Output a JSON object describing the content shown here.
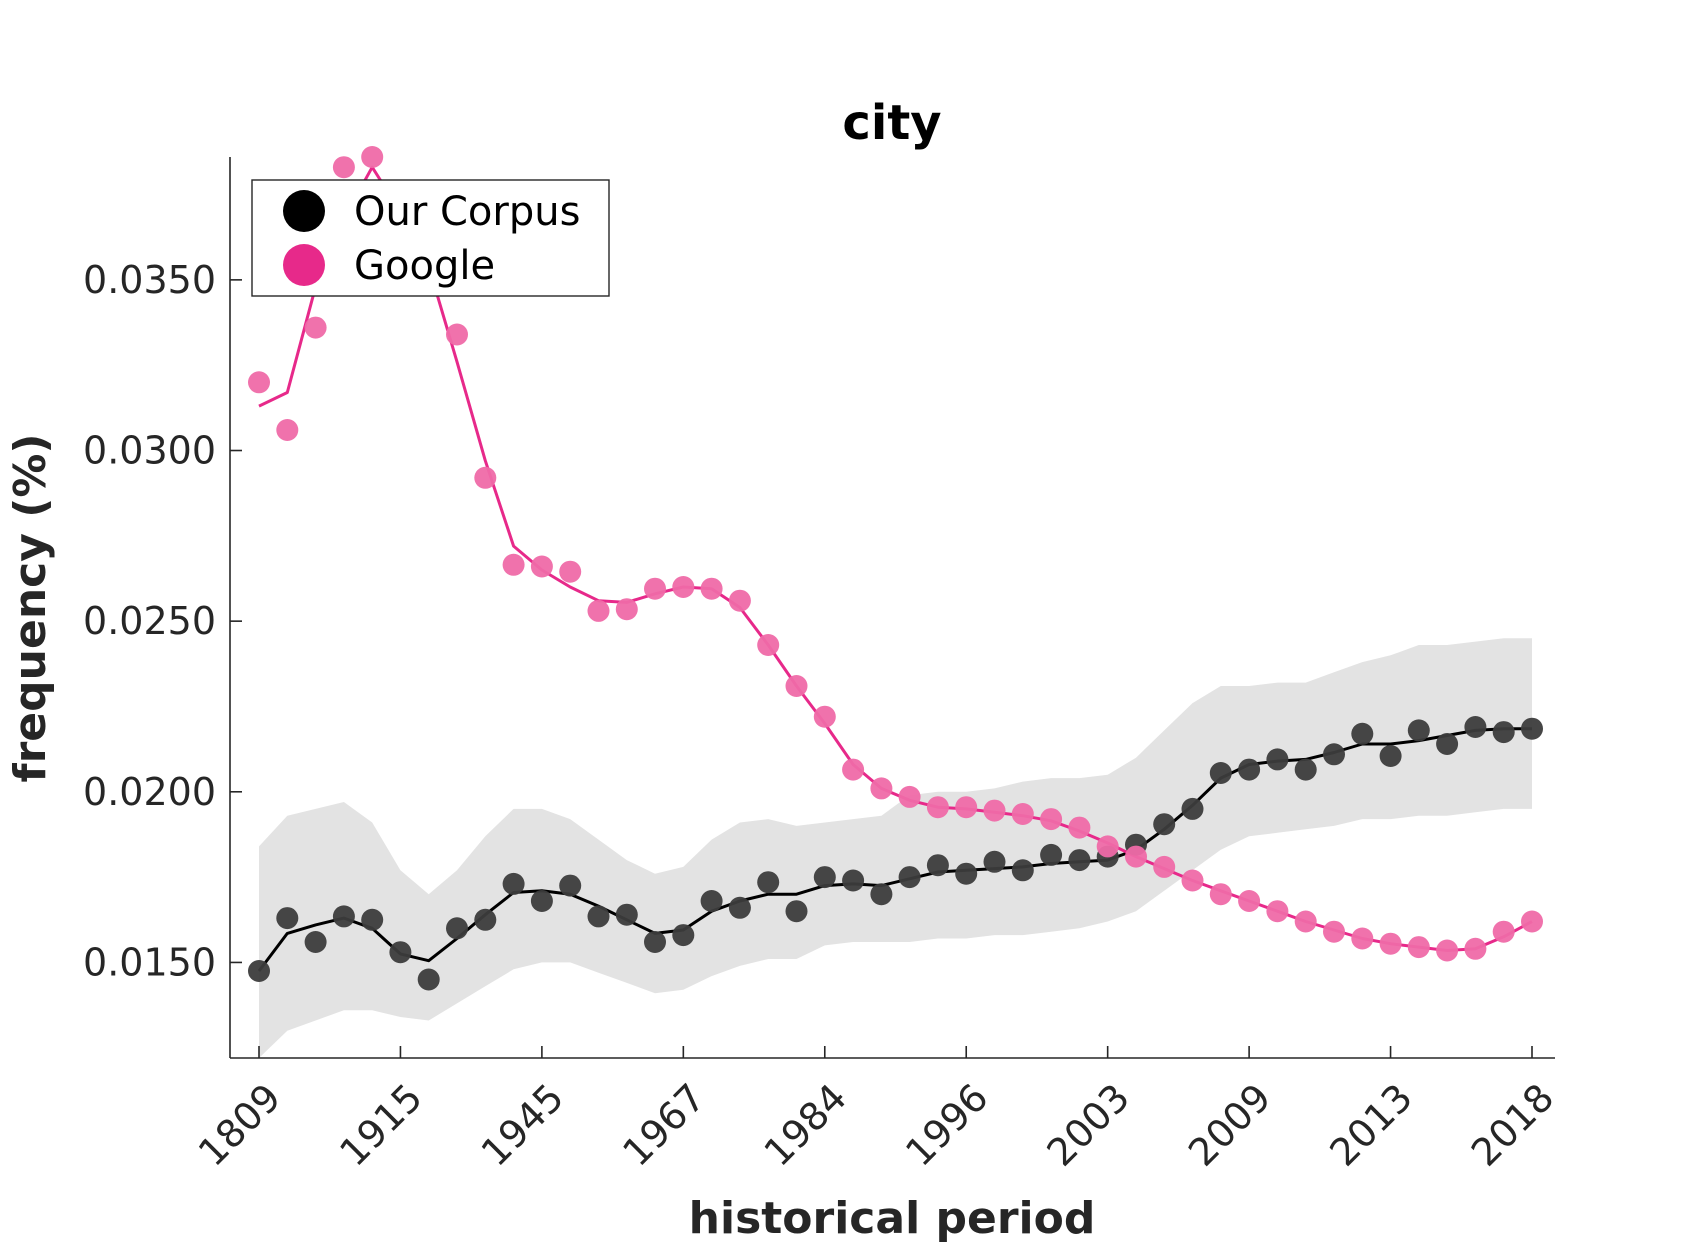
{
  "chart_data": {
    "type": "scatter",
    "title": "city",
    "xlabel": "historical period",
    "ylabel": "frequency (%)",
    "ylim": [
      0.0122,
      0.0386
    ],
    "yticks": [
      "0.0150",
      "0.0200",
      "0.0250",
      "0.0300",
      "0.0350"
    ],
    "xtick_labels": [
      "1809",
      "1915",
      "1945",
      "1967",
      "1984",
      "1996",
      "2003",
      "2009",
      "2013",
      "2018"
    ],
    "legend_position": "top-left",
    "grid": false,
    "series": [
      {
        "name": "Our Corpus",
        "color": "#000000",
        "points": [
          0.01475,
          0.0163,
          0.0156,
          0.01635,
          0.01625,
          0.0153,
          0.0145,
          0.016,
          0.01625,
          0.0173,
          0.0168,
          0.01725,
          0.01635,
          0.0164,
          0.0156,
          0.0158,
          0.0168,
          0.0166,
          0.01735,
          0.0165,
          0.0175,
          0.0174,
          0.017,
          0.0175,
          0.01785,
          0.0176,
          0.01795,
          0.0177,
          0.01815,
          0.018,
          0.0181,
          0.01845,
          0.01905,
          0.0195,
          0.02055,
          0.02065,
          0.02095,
          0.02065,
          0.0211,
          0.0217,
          0.02105,
          0.0218,
          0.0214,
          0.0219,
          0.02175,
          0.02185
        ],
        "smooth": [
          0.01475,
          0.01585,
          0.0161,
          0.0163,
          0.016,
          0.01525,
          0.01505,
          0.0157,
          0.0164,
          0.01705,
          0.0171,
          0.017,
          0.01665,
          0.01625,
          0.01585,
          0.01595,
          0.0165,
          0.0168,
          0.017,
          0.017,
          0.01725,
          0.0173,
          0.01725,
          0.01745,
          0.01765,
          0.0177,
          0.01775,
          0.0178,
          0.0179,
          0.01795,
          0.018,
          0.0183,
          0.0189,
          0.0196,
          0.0204,
          0.0208,
          0.0209,
          0.02095,
          0.02115,
          0.0214,
          0.0214,
          0.0215,
          0.02165,
          0.0218,
          0.02185,
          0.02185
        ],
        "band_lower": [
          0.0122,
          0.013,
          0.0133,
          0.0136,
          0.0136,
          0.0134,
          0.0133,
          0.0138,
          0.0143,
          0.0148,
          0.015,
          0.015,
          0.0147,
          0.0144,
          0.0141,
          0.0142,
          0.0146,
          0.0149,
          0.0151,
          0.0151,
          0.0155,
          0.0156,
          0.0156,
          0.0156,
          0.0157,
          0.0157,
          0.0158,
          0.0158,
          0.0159,
          0.016,
          0.0162,
          0.0165,
          0.0171,
          0.0177,
          0.0183,
          0.0187,
          0.0188,
          0.0189,
          0.019,
          0.0192,
          0.0192,
          0.0193,
          0.0193,
          0.0194,
          0.0195,
          0.0195
        ],
        "band_upper": [
          0.0184,
          0.0193,
          0.0195,
          0.0197,
          0.0191,
          0.0177,
          0.017,
          0.0177,
          0.0187,
          0.0195,
          0.0195,
          0.0192,
          0.0186,
          0.018,
          0.0176,
          0.0178,
          0.0186,
          0.0191,
          0.0192,
          0.019,
          0.0191,
          0.0192,
          0.0193,
          0.0199,
          0.02,
          0.02,
          0.0201,
          0.0203,
          0.0204,
          0.0204,
          0.0205,
          0.021,
          0.0218,
          0.0226,
          0.0231,
          0.0231,
          0.0232,
          0.0232,
          0.0235,
          0.0238,
          0.024,
          0.0243,
          0.0243,
          0.0244,
          0.0245,
          0.0245
        ]
      },
      {
        "name": "Google",
        "color": "#e7298a",
        "points": [
          0.032,
          0.0306,
          0.0336,
          0.0383,
          0.0386,
          0.0365,
          0.035,
          0.0334,
          0.0292,
          0.02665,
          0.0266,
          0.02645,
          0.0253,
          0.02535,
          0.02595,
          0.026,
          0.02595,
          0.0256,
          0.0243,
          0.0231,
          0.0222,
          0.02065,
          0.0201,
          0.01985,
          0.01955,
          0.01955,
          0.01945,
          0.01935,
          0.0192,
          0.01895,
          0.0184,
          0.0181,
          0.0178,
          0.0174,
          0.017,
          0.0168,
          0.0165,
          0.0162,
          0.0159,
          0.0157,
          0.01555,
          0.01545,
          0.01535,
          0.0154,
          0.0159,
          0.0162
        ],
        "smooth": [
          0.0313,
          0.0317,
          0.0348,
          0.0368,
          0.0383,
          0.037,
          0.0354,
          0.0326,
          0.0297,
          0.0272,
          0.0265,
          0.026,
          0.0256,
          0.02555,
          0.0258,
          0.026,
          0.02595,
          0.0254,
          0.0243,
          0.0231,
          0.022,
          0.0208,
          0.0201,
          0.01975,
          0.01955,
          0.0195,
          0.0194,
          0.0193,
          0.01915,
          0.01885,
          0.0185,
          0.0181,
          0.01775,
          0.0174,
          0.0171,
          0.0168,
          0.0165,
          0.0162,
          0.01595,
          0.0157,
          0.01555,
          0.01545,
          0.01535,
          0.0154,
          0.01575,
          0.0162
        ]
      }
    ]
  }
}
